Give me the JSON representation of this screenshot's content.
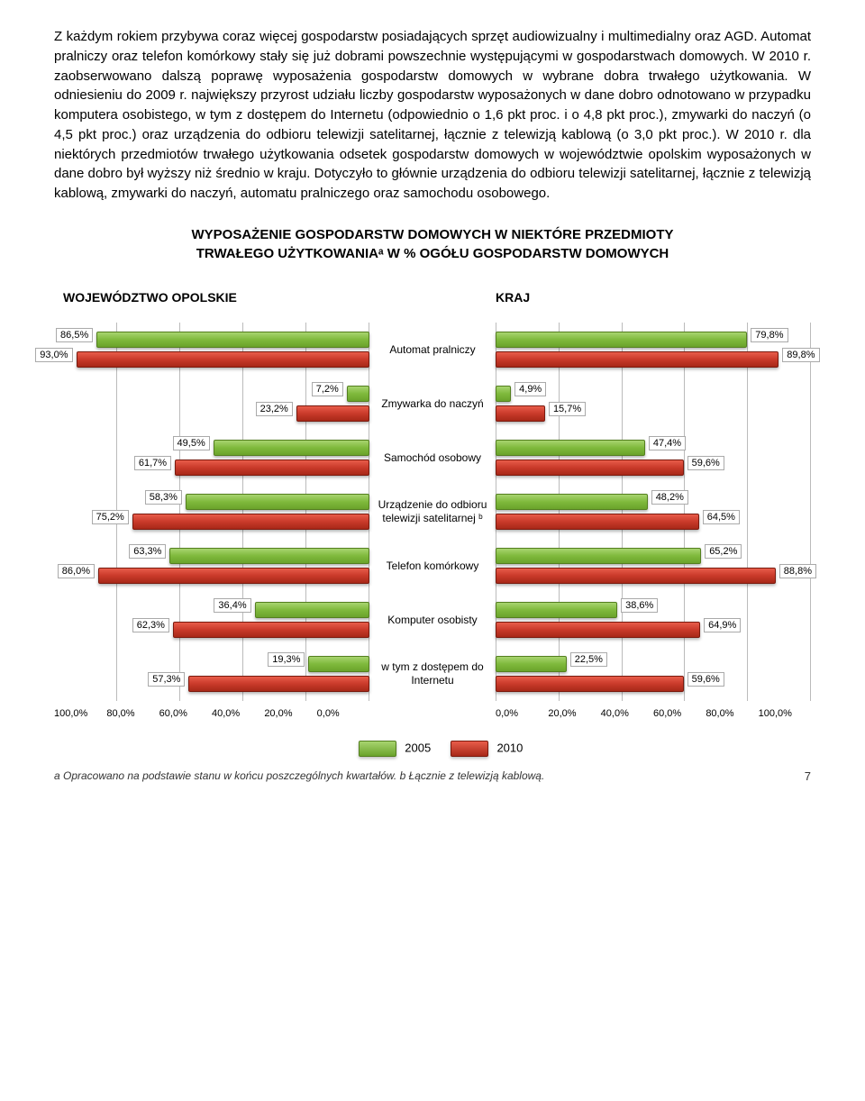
{
  "paragraph": "Z każdym rokiem przybywa coraz więcej gospodarstw posiadających sprzęt audiowizualny i multimedialny oraz AGD. Automat pralniczy oraz telefon komórkowy stały się już dobrami powszechnie występującymi w gospodarstwach domowych. W 2010 r. zaobserwowano dalszą poprawę wyposażenia gospodarstw domowych w wybrane dobra trwałego użytkowania. W odniesieniu do 2009 r. największy przyrost udziału liczby gospodarstw wyposażonych w dane dobro odnotowano w przypadku komputera osobistego, w tym z dostępem do Internetu (odpowiednio o 1,6 pkt proc. i o 4,8 pkt proc.), zmywarki do naczyń (o 4,5 pkt proc.) oraz urządzenia do odbioru telewizji satelitarnej, łącznie z telewizją kablową (o 3,0 pkt proc.). W 2010 r. dla niektórych przedmiotów trwałego użytkowania odsetek gospodarstw domowych w województwie opolskim wyposażonych w dane dobro był wyższy niż średnio w kraju. Dotyczyło to głównie urządzenia do odbioru telewizji satelitarnej, łącznie z telewizją kablową, zmywarki do naczyń, automatu pralniczego oraz samochodu osobowego.",
  "heading_l1": "WYPOSAŻENIE GOSPODARSTW DOMOWYCH W NIEKTÓRE PRZEDMIOTY",
  "heading_l2": "TRWAŁEGO UŻYTKOWANIAᵃ W % OGÓŁU GOSPODARSTW DOMOWYCH",
  "subhead_left": "WOJEWÓDZTWO OPOLSKIE",
  "subhead_right": "KRAJ",
  "categories": [
    {
      "label": "Automat pralniczy",
      "lg": 86.5,
      "lr": 93.0,
      "rg": 79.8,
      "rr": 89.8
    },
    {
      "label": "Zmywarka do naczyń",
      "lg": 7.2,
      "lr": 23.2,
      "rg": 4.9,
      "rr": 15.7
    },
    {
      "label": "Samochód osobowy",
      "lg": 49.5,
      "lr": 61.7,
      "rg": 47.4,
      "rr": 59.6
    },
    {
      "label": "Urządzenie do odbioru telewizji satelitarnej ᵇ",
      "lg": 58.3,
      "lr": 75.2,
      "rg": 48.2,
      "rr": 64.5
    },
    {
      "label": "Telefon komórkowy",
      "lg": 63.3,
      "lr": 86.0,
      "rg": 65.2,
      "rr": 88.8
    },
    {
      "label": "Komputer osobisty",
      "lg": 36.4,
      "lr": 62.3,
      "rg": 38.6,
      "rr": 64.9
    },
    {
      "label": "w tym z dostępem do Internetu",
      "lg": 19.3,
      "lr": 57.3,
      "rg": 22.5,
      "rr": 59.6
    }
  ],
  "axis_ticks_left": [
    "100,0%",
    "80,0%",
    "60,0%",
    "40,0%",
    "20,0%",
    "0,0%"
  ],
  "axis_ticks_right": [
    "0,0%",
    "20,0%",
    "40,0%",
    "60,0%",
    "80,0%",
    "100,0%"
  ],
  "legend_2005": "2005",
  "legend_2010": "2010",
  "footnote_a": "a Opracowano na podstawie stanu w końcu poszczególnych kwartałów. ",
  "footnote_b": "b Łącznie z telewizją kablową.",
  "pagenum": "7",
  "colors": {
    "green_bar": "#7fb93c",
    "red_bar": "#c93a2a",
    "grid": "#bbbbbb",
    "label_border": "#aaaaaa"
  },
  "xlim": 100
}
